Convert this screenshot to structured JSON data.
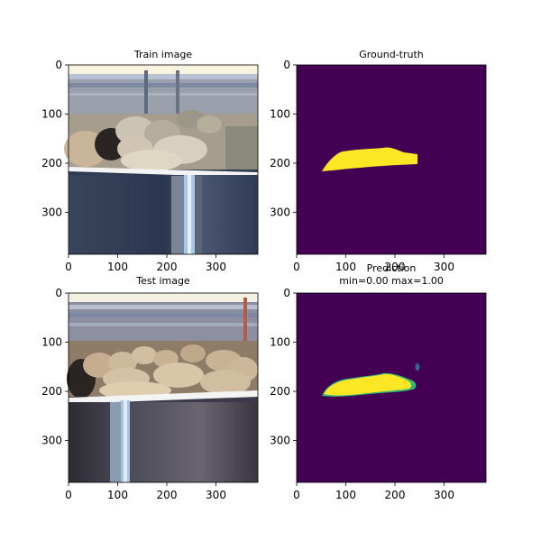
{
  "panels": [
    {
      "id": "train",
      "title": "Train image",
      "xticks": [
        "0",
        "100",
        "200",
        "300"
      ],
      "yticks": [
        "0",
        "100",
        "200",
        "300"
      ],
      "colors": {
        "sky": "#f7f3df",
        "wall": "#2d3a52",
        "sheep": "#c7b8a0",
        "rail": "#f0f0f0"
      }
    },
    {
      "id": "gt",
      "title": "Ground-truth",
      "xticks": [
        "0",
        "100",
        "200",
        "300"
      ],
      "yticks": [
        "0",
        "100",
        "200",
        "300"
      ],
      "colors": {
        "background": "#440154",
        "mask": "#fde725"
      }
    },
    {
      "id": "test",
      "title": "Test image",
      "xticks": [
        "0",
        "100",
        "200",
        "300"
      ],
      "yticks": [
        "0",
        "100",
        "200",
        "300"
      ],
      "colors": {
        "sky": "#f4f0e2",
        "wall": "#3a3a4a",
        "sheep": "#c9b394",
        "rail": "#f0f0f0"
      }
    },
    {
      "id": "pred",
      "title": "Prediction",
      "subtitle": "min=0.00 max=1.00",
      "xticks": [
        "0",
        "100",
        "200",
        "300"
      ],
      "yticks": [
        "0",
        "100",
        "200",
        "300"
      ],
      "colors": {
        "background": "#440154",
        "mask": "#fde725",
        "edge": "#35b779"
      }
    }
  ],
  "axes_range": [
    0,
    385
  ]
}
